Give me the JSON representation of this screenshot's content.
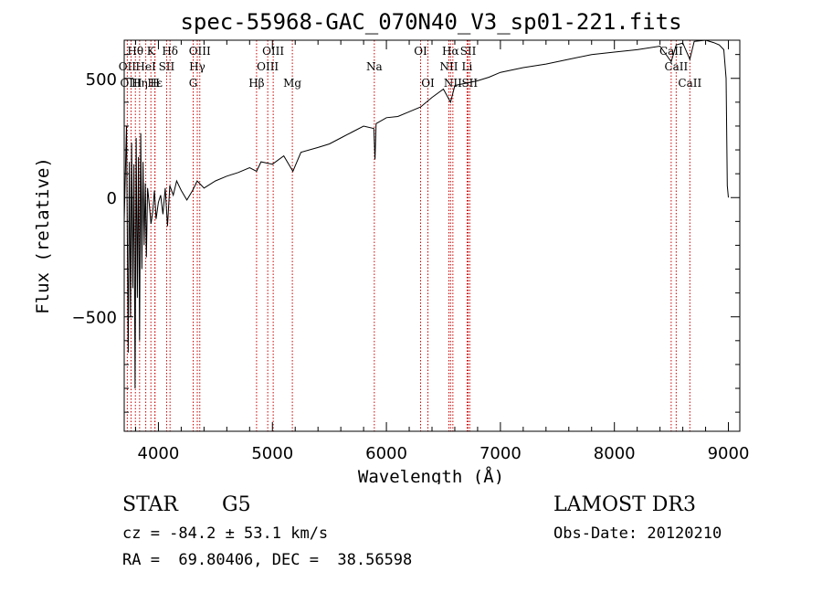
{
  "chart_data": {
    "type": "line",
    "title": "spec-55968-GAC_070N40_V3_sp01-221.fits",
    "xlabel": "Wavelength (Å)",
    "ylabel": "Flux (relative)",
    "xlim": [
      3700,
      9100
    ],
    "ylim": [
      -980,
      660
    ],
    "x_ticks": [
      4000,
      5000,
      6000,
      7000,
      8000,
      9000
    ],
    "y_ticks": [
      -500,
      0,
      500
    ],
    "series": [
      {
        "name": "flux",
        "x": [
          3700,
          3720,
          3735,
          3745,
          3755,
          3765,
          3775,
          3785,
          3795,
          3805,
          3815,
          3825,
          3835,
          3845,
          3855,
          3865,
          3875,
          3885,
          3895,
          3905,
          3920,
          3935,
          3950,
          3965,
          3980,
          4000,
          4020,
          4040,
          4060,
          4080,
          4100,
          4130,
          4160,
          4200,
          4250,
          4300,
          4340,
          4400,
          4500,
          4600,
          4700,
          4800,
          4861,
          4900,
          5000,
          5100,
          5180,
          5250,
          5400,
          5500,
          5600,
          5700,
          5800,
          5890,
          5900,
          5910,
          6000,
          6100,
          6200,
          6300,
          6400,
          6500,
          6563,
          6600,
          6700,
          6800,
          6900,
          7000,
          7200,
          7400,
          7600,
          7800,
          8000,
          8200,
          8400,
          8498,
          8542,
          8600,
          8662,
          8700,
          8800,
          8870,
          8920,
          8960,
          8980,
          8990,
          9000
        ],
        "y": [
          -100,
          300,
          -650,
          150,
          -500,
          230,
          -380,
          140,
          -800,
          250,
          -420,
          170,
          -600,
          270,
          -300,
          150,
          -200,
          60,
          -250,
          40,
          -30,
          -110,
          -60,
          30,
          -90,
          -20,
          10,
          -70,
          40,
          -120,
          50,
          10,
          70,
          30,
          -10,
          30,
          70,
          40,
          70,
          90,
          105,
          125,
          110,
          150,
          140,
          175,
          110,
          190,
          210,
          225,
          250,
          275,
          300,
          290,
          160,
          310,
          335,
          340,
          360,
          380,
          420,
          455,
          400,
          470,
          480,
          490,
          505,
          525,
          545,
          560,
          580,
          600,
          610,
          620,
          635,
          570,
          640,
          648,
          580,
          655,
          660,
          650,
          640,
          620,
          500,
          50,
          0
        ]
      }
    ],
    "spectral_lines": [
      {
        "label": "Hθ",
        "x": 3798,
        "row": 1
      },
      {
        "label": "OII",
        "x": 3727,
        "row": 2
      },
      {
        "label": "OIII",
        "x": 3760,
        "row": 3
      },
      {
        "label": "K",
        "x": 3934,
        "row": 1
      },
      {
        "label": "HeI",
        "x": 3889,
        "row": 2
      },
      {
        "label": "Hη",
        "x": 3835,
        "row": 3
      },
      {
        "label": "Hε",
        "x": 3970,
        "row": 3
      },
      {
        "label": "H",
        "x": 3969,
        "row": 3
      },
      {
        "label": "Hδ",
        "x": 4102,
        "row": 1
      },
      {
        "label": "SII",
        "x": 4072,
        "row": 2
      },
      {
        "label": "OIII",
        "x": 4363,
        "row": 1
      },
      {
        "label": "Hγ",
        "x": 4341,
        "row": 2
      },
      {
        "label": "G",
        "x": 4305,
        "row": 3
      },
      {
        "label": "Hβ",
        "x": 4861,
        "row": 3
      },
      {
        "label": "OIII",
        "x": 5007,
        "row": 1
      },
      {
        "label": "OIII",
        "x": 4959,
        "row": 2
      },
      {
        "label": "Mg",
        "x": 5175,
        "row": 3
      },
      {
        "label": "Na",
        "x": 5894,
        "row": 2
      },
      {
        "label": "OI",
        "x": 6300,
        "row": 1
      },
      {
        "label": "OI",
        "x": 6364,
        "row": 3
      },
      {
        "label": "Hα",
        "x": 6563,
        "row": 1
      },
      {
        "label": "NII",
        "x": 6548,
        "row": 2
      },
      {
        "label": "NII",
        "x": 6583,
        "row": 3
      },
      {
        "label": "SII",
        "x": 6717,
        "row": 1
      },
      {
        "label": "Li",
        "x": 6708,
        "row": 2
      },
      {
        "label": "SII",
        "x": 6731,
        "row": 3
      },
      {
        "label": "CaII",
        "x": 8498,
        "row": 1
      },
      {
        "label": "CaII",
        "x": 8542,
        "row": 2
      },
      {
        "label": "CaII",
        "x": 8662,
        "row": 3
      }
    ]
  },
  "info": {
    "class": "STAR",
    "subclass": "G5",
    "survey": "LAMOST DR3",
    "cz": "cz = -84.2 ± 53.1 km/s",
    "obs_date": "Obs-Date: 20120210",
    "coords": "RA =  69.80406, DEC =  38.56598"
  },
  "colors": {
    "line": "#000000",
    "marker": "#cc0000",
    "axis": "#000000",
    "background": "#ffffff"
  }
}
